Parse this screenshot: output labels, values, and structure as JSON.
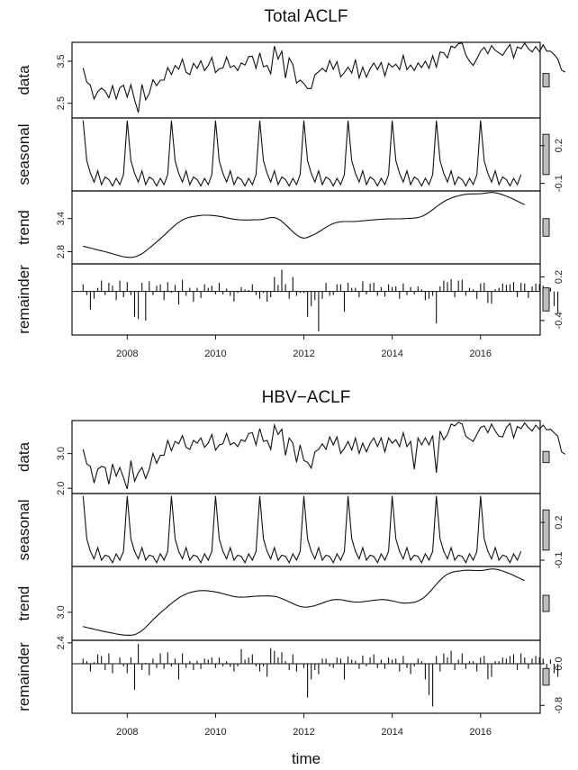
{
  "chart_data": [
    {
      "type": "line",
      "title": "Total ACLF",
      "xlabel": "",
      "x_ticks": [
        "2008",
        "2010",
        "2012",
        "2014",
        "2016"
      ],
      "x_range": [
        2006.75,
        2017.35
      ],
      "x_start": 2007.0,
      "x_step": 0.08333,
      "panels": [
        {
          "key": "data",
          "label": "data",
          "style": "line",
          "ylim": [
            2.15,
            3.95
          ],
          "ticks": [
            "2.5",
            "3.5"
          ],
          "tick_values": [
            2.5,
            3.5
          ],
          "tick_side": "left",
          "values": [
            3.34,
            3.0,
            2.93,
            2.6,
            2.78,
            2.86,
            2.79,
            2.63,
            2.92,
            2.6,
            2.87,
            2.93,
            2.65,
            2.94,
            2.58,
            2.28,
            2.95,
            2.58,
            2.73,
            3.06,
            2.92,
            3.05,
            3.05,
            3.35,
            3.18,
            3.4,
            3.31,
            3.55,
            3.24,
            3.18,
            3.45,
            3.33,
            3.51,
            3.28,
            3.4,
            3.59,
            3.23,
            3.32,
            3.34,
            3.6,
            3.35,
            3.4,
            3.28,
            3.46,
            3.41,
            3.61,
            3.62,
            3.33,
            3.7,
            3.37,
            3.4,
            3.2,
            3.86,
            3.55,
            3.74,
            3.1,
            3.58,
            3.42,
            2.98,
            3.05,
            2.97,
            2.85,
            2.85,
            3.18,
            3.25,
            3.33,
            3.25,
            3.52,
            3.31,
            3.49,
            3.13,
            3.23,
            3.36,
            3.22,
            3.54,
            3.1,
            3.36,
            3.12,
            3.32,
            3.46,
            3.3,
            3.47,
            3.15,
            3.45,
            3.36,
            3.43,
            3.3,
            3.64,
            3.3,
            3.41,
            3.28,
            3.46,
            3.35,
            3.5,
            3.33,
            3.63,
            3.36,
            3.72,
            3.7,
            3.58,
            3.86,
            3.82,
            3.92,
            3.93,
            3.65,
            3.5,
            3.4,
            3.56,
            3.74,
            3.83,
            3.68,
            3.87,
            3.76,
            3.7,
            3.64,
            3.78,
            3.9,
            3.58,
            3.84,
            3.8,
            3.93,
            3.8,
            3.72,
            3.85,
            3.73,
            3.89,
            3.74,
            3.74,
            3.66,
            3.55,
            3.29,
            3.24
          ]
        },
        {
          "key": "seasonal",
          "label": "seasonal",
          "style": "line",
          "ylim": [
            -0.16,
            0.42
          ],
          "ticks": [
            "0.2",
            "-0.1"
          ],
          "tick_values": [
            0.2,
            -0.1
          ],
          "tick_side": "right",
          "values": [
            0.4,
            0.08,
            -0.02,
            -0.09,
            0.0,
            -0.11,
            -0.05,
            -0.07,
            -0.12,
            -0.06,
            -0.11,
            -0.03
          ]
        },
        {
          "key": "trend",
          "label": "trend",
          "style": "line",
          "ylim": [
            2.58,
            3.9
          ],
          "ticks": [
            "2.8",
            "3.4"
          ],
          "tick_values": [
            2.8,
            3.4
          ],
          "tick_side": "left",
          "knots": [
            [
              2007.0,
              2.9
            ],
            [
              2007.5,
              2.8
            ],
            [
              2008.0,
              2.7
            ],
            [
              2008.3,
              2.75
            ],
            [
              2008.7,
              3.0
            ],
            [
              2009.2,
              3.35
            ],
            [
              2009.6,
              3.45
            ],
            [
              2010.0,
              3.45
            ],
            [
              2010.5,
              3.38
            ],
            [
              2011.0,
              3.38
            ],
            [
              2011.4,
              3.4
            ],
            [
              2011.9,
              3.07
            ],
            [
              2012.2,
              3.1
            ],
            [
              2012.7,
              3.32
            ],
            [
              2013.2,
              3.35
            ],
            [
              2013.8,
              3.39
            ],
            [
              2014.3,
              3.4
            ],
            [
              2014.7,
              3.45
            ],
            [
              2015.2,
              3.72
            ],
            [
              2015.6,
              3.83
            ],
            [
              2016.0,
              3.85
            ],
            [
              2016.3,
              3.87
            ],
            [
              2016.6,
              3.8
            ],
            [
              2017.0,
              3.65
            ]
          ]
        },
        {
          "key": "remainder",
          "label": "remainder",
          "style": "bars",
          "ylim": [
            -0.6,
            0.38
          ],
          "ticks": [
            "0.2",
            "-0.4"
          ],
          "tick_values": [
            0.2,
            -0.4
          ],
          "tick_side": "right",
          "values": [
            0.1,
            -0.05,
            -0.25,
            -0.1,
            0.05,
            0.15,
            -0.05,
            0.12,
            0.08,
            -0.12,
            0.15,
            -0.08,
            0.13,
            -0.05,
            -0.35,
            -0.38,
            0.12,
            -0.4,
            0.14,
            -0.05,
            0.08,
            0.1,
            -0.12,
            0.13,
            -0.02,
            0.09,
            -0.18,
            0.16,
            -0.06,
            0.05,
            -0.14,
            0.05,
            -0.09,
            0.1,
            0.05,
            0.08,
            -0.04,
            0.12,
            -0.04,
            0.04,
            -0.06,
            -0.14,
            -0.02,
            0.06,
            0.03,
            0.02,
            0.1,
            -0.05,
            -0.1,
            -0.02,
            -0.14,
            -0.08,
            0.2,
            0.09,
            0.3,
            0.1,
            -0.1,
            0.2,
            -0.06,
            -0.02,
            -0.02,
            -0.35,
            -0.2,
            -0.12,
            -0.55,
            -0.1,
            0.12,
            -0.06,
            -0.05,
            0.1,
            0.1,
            -0.28,
            0.12,
            0.05,
            0.05,
            -0.08,
            0.14,
            -0.04,
            0.11,
            0.12,
            -0.06,
            0.06,
            -0.07,
            0.1,
            0.06,
            0.07,
            -0.1,
            0.11,
            -0.05,
            0.06,
            -0.04,
            0.07,
            0.03,
            -0.12,
            -0.1,
            -0.06,
            -0.44,
            0.07,
            0.15,
            0.13,
            0.17,
            -0.08,
            0.15,
            0.16,
            -0.06,
            0.05,
            0.03,
            -0.1,
            0.11,
            0.12,
            -0.16,
            -0.17,
            0.03,
            0.05,
            0.11,
            0.09,
            0.1,
            0.13,
            -0.08,
            0.12,
            0.11,
            -0.09,
            0.07,
            0.11,
            0.1,
            0.08,
            -0.09,
            0.05,
            -0.2,
            -0.3
          ]
        }
      ]
    },
    {
      "type": "line",
      "title": "HBV−ACLF",
      "xlabel": "time",
      "x_ticks": [
        "2008",
        "2010",
        "2012",
        "2014",
        "2016"
      ],
      "x_range": [
        2006.75,
        2017.35
      ],
      "x_start": 2007.0,
      "x_step": 0.08333,
      "panels": [
        {
          "key": "data",
          "label": "data",
          "style": "line",
          "ylim": [
            1.85,
            3.95
          ],
          "ticks": [
            "3.0",
            "2.0"
          ],
          "tick_values": [
            3.0,
            2.0
          ],
          "tick_side": "left",
          "values": [
            3.12,
            2.7,
            2.63,
            2.15,
            2.55,
            2.63,
            2.6,
            2.12,
            2.7,
            2.35,
            2.6,
            2.3,
            1.98,
            2.8,
            2.2,
            2.45,
            2.6,
            2.28,
            2.55,
            3.0,
            2.72,
            2.95,
            2.95,
            3.38,
            3.08,
            3.35,
            3.28,
            3.52,
            3.18,
            3.12,
            3.38,
            3.3,
            3.45,
            3.18,
            3.3,
            3.55,
            3.1,
            3.25,
            3.28,
            3.58,
            3.25,
            3.32,
            3.2,
            3.4,
            3.35,
            3.58,
            3.6,
            3.25,
            3.72,
            3.35,
            3.38,
            3.12,
            3.82,
            3.55,
            3.7,
            2.95,
            3.45,
            3.3,
            2.75,
            3.25,
            2.8,
            2.75,
            2.58,
            3.05,
            3.12,
            3.28,
            3.12,
            3.48,
            3.25,
            3.48,
            3.0,
            3.15,
            3.35,
            3.1,
            3.45,
            3.0,
            3.3,
            3.05,
            3.3,
            3.45,
            3.2,
            3.45,
            3.05,
            3.45,
            3.3,
            3.4,
            3.2,
            3.6,
            3.2,
            3.35,
            2.55,
            3.45,
            3.25,
            3.45,
            3.25,
            3.52,
            2.45,
            3.65,
            3.4,
            3.55,
            3.85,
            3.8,
            3.9,
            3.85,
            3.5,
            3.42,
            3.35,
            3.55,
            3.75,
            3.8,
            3.6,
            3.85,
            3.65,
            3.5,
            3.48,
            3.75,
            3.87,
            3.45,
            3.78,
            3.72,
            3.88,
            3.75,
            3.65,
            3.82,
            3.7,
            3.82,
            3.68,
            3.7,
            3.6,
            3.5,
            3.05,
            2.98
          ]
        },
        {
          "key": "seasonal",
          "label": "seasonal",
          "style": "line",
          "ylim": [
            -0.15,
            0.43
          ],
          "ticks": [
            "0.2",
            "-0.1"
          ],
          "tick_values": [
            0.2,
            -0.1
          ],
          "tick_side": "right",
          "values": [
            0.41,
            0.07,
            -0.03,
            -0.09,
            0.0,
            -0.1,
            -0.06,
            -0.07,
            -0.12,
            -0.05,
            -0.1,
            -0.03
          ]
        },
        {
          "key": "trend",
          "label": "trend",
          "style": "line",
          "ylim": [
            2.45,
            3.9
          ],
          "ticks": [
            "3.0",
            "2.4"
          ],
          "tick_values": [
            3.0,
            2.4
          ],
          "tick_side": "left",
          "knots": [
            [
              2007.0,
              2.72
            ],
            [
              2007.5,
              2.62
            ],
            [
              2008.0,
              2.55
            ],
            [
              2008.3,
              2.62
            ],
            [
              2008.7,
              2.95
            ],
            [
              2009.2,
              3.3
            ],
            [
              2009.6,
              3.42
            ],
            [
              2010.0,
              3.4
            ],
            [
              2010.5,
              3.3
            ],
            [
              2011.0,
              3.32
            ],
            [
              2011.4,
              3.3
            ],
            [
              2011.9,
              3.12
            ],
            [
              2012.2,
              3.12
            ],
            [
              2012.7,
              3.25
            ],
            [
              2013.2,
              3.2
            ],
            [
              2013.8,
              3.25
            ],
            [
              2014.3,
              3.18
            ],
            [
              2014.7,
              3.28
            ],
            [
              2015.2,
              3.72
            ],
            [
              2015.6,
              3.82
            ],
            [
              2016.0,
              3.82
            ],
            [
              2016.3,
              3.85
            ],
            [
              2016.6,
              3.78
            ],
            [
              2017.0,
              3.62
            ]
          ]
        },
        {
          "key": "remainder",
          "label": "remainder",
          "style": "bars",
          "ylim": [
            -0.95,
            0.45
          ],
          "ticks": [
            "0.0",
            "-0.8"
          ],
          "tick_values": [
            0.0,
            -0.8
          ],
          "tick_side": "right",
          "values": [
            0.1,
            0.05,
            -0.15,
            0.03,
            0.18,
            0.15,
            -0.12,
            0.2,
            -0.18,
            0.0,
            0.12,
            -0.05,
            -0.18,
            0.12,
            -0.5,
            0.38,
            -0.12,
            0.02,
            -0.22,
            0.1,
            -0.08,
            0.2,
            -0.1,
            0.22,
            -0.05,
            0.1,
            -0.3,
            0.2,
            -0.08,
            0.05,
            -0.12,
            0.06,
            -0.1,
            0.1,
            0.08,
            0.12,
            -0.08,
            0.12,
            -0.05,
            0.05,
            -0.06,
            -0.15,
            -0.05,
            0.28,
            0.08,
            0.12,
            0.18,
            -0.05,
            -0.15,
            -0.05,
            -0.25,
            0.3,
            0.25,
            0.12,
            0.22,
            0.05,
            -0.12,
            0.18,
            -0.15,
            0.0,
            -0.08,
            -0.65,
            -0.3,
            -0.12,
            -0.2,
            0.1,
            0.1,
            -0.05,
            -0.08,
            0.12,
            0.1,
            -0.3,
            0.14,
            0.08,
            0.06,
            -0.1,
            0.16,
            -0.05,
            0.12,
            0.18,
            -0.08,
            0.08,
            -0.1,
            0.12,
            0.08,
            0.1,
            -0.15,
            0.15,
            -0.08,
            -0.2,
            -0.05,
            0.1,
            0.05,
            -0.3,
            -0.6,
            -0.82,
            0.15,
            -0.15,
            0.2,
            0.12,
            0.25,
            -0.12,
            0.08,
            0.2,
            -0.1,
            0.05,
            0.05,
            -0.15,
            0.12,
            0.15,
            -0.3,
            -0.25,
            0.05,
            0.05,
            0.12,
            0.1,
            0.15,
            0.18,
            -0.12,
            0.2,
            0.12,
            -0.1,
            0.1,
            0.15,
            0.12,
            0.1,
            -0.12,
            0.08,
            -0.18,
            -0.25
          ]
        }
      ]
    }
  ]
}
